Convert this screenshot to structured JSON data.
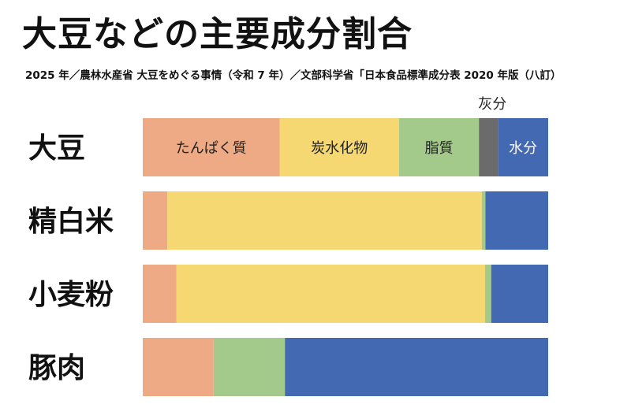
{
  "header": {
    "title": "大豆などの主要成分割合",
    "subtitle": "2025 年／農林水産省 大豆をめぐる事情（令和 7 年）／文部科学省「日本食品標準成分表 2020 年版（八訂）"
  },
  "chart_data": {
    "type": "bar",
    "orientation": "horizontal",
    "stacked": true,
    "normalized": true,
    "categories": [
      "大豆",
      "精白米",
      "小麦粉",
      "豚肉"
    ],
    "series": [
      {
        "name": "たんぱく質",
        "color": "#eeaa84",
        "values": [
          33.8,
          6.1,
          8.3,
          17.5
        ]
      },
      {
        "name": "炭水化物",
        "color": "#f6d873",
        "values": [
          29.5,
          77.6,
          75.8,
          0
        ]
      },
      {
        "name": "脂質",
        "color": "#a3ca8b",
        "values": [
          19.7,
          0.9,
          1.5,
          17.6
        ]
      },
      {
        "name": "灰分",
        "color": "#6b6b6b",
        "values": [
          4.7,
          0,
          0,
          0
        ]
      },
      {
        "name": "水分",
        "color": "#4369b3",
        "values": [
          12.4,
          15.5,
          14.0,
          65.0
        ]
      }
    ],
    "label_row": 0,
    "external_label_series": "灰分",
    "xlim": [
      0,
      100
    ],
    "legend": "none",
    "grid": false
  }
}
